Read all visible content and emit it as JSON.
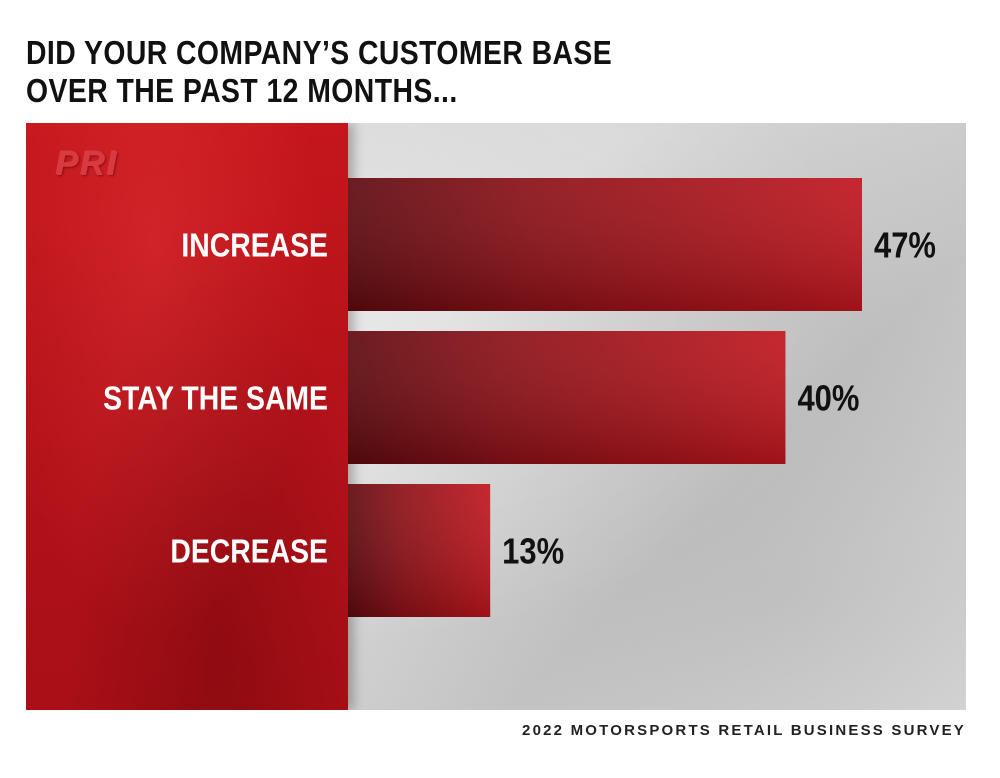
{
  "chart_data": {
    "type": "bar",
    "orientation": "horizontal",
    "title": [
      "DID YOUR COMPANY’S CUSTOMER BASE",
      "OVER THE PAST 12 MONTHS..."
    ],
    "categories": [
      "INCREASE",
      "STAY THE SAME",
      "DECREASE"
    ],
    "values": [
      47,
      40,
      13
    ],
    "value_labels": [
      "47%",
      "40%",
      "13%"
    ],
    "unit": "%",
    "xlim": [
      0,
      47
    ],
    "grid": false,
    "legend": "none",
    "bar_color": "#a3141b",
    "source": "2022 MOTORSPORTS RETAIL BUSINESS SURVEY"
  },
  "logo": {
    "text": "PRI"
  }
}
